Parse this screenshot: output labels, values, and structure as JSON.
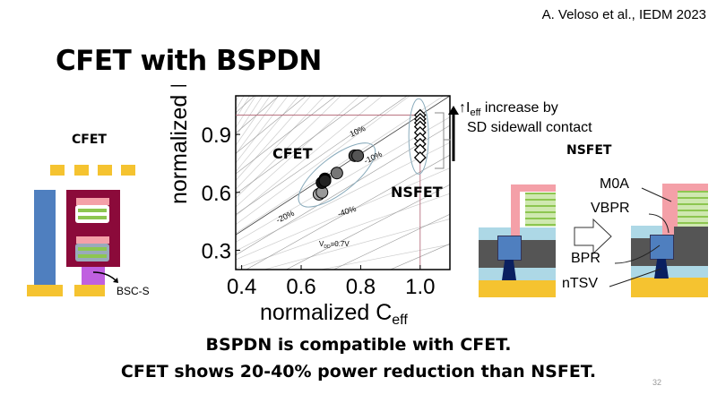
{
  "citation": "A. Veloso et al., IEDM 2023",
  "title": "CFET with BSPDN",
  "conclusions": [
    "BSPDN is compatible with CFET.",
    "CFET shows 20-40% power reduction than NSFET."
  ],
  "page_number": "32",
  "left_diagram": {
    "title": "CFET",
    "label": "BSC-S"
  },
  "right_diagram": {
    "title": "NSFET",
    "labels": [
      "M0A",
      "VBPR",
      "BPR",
      "nTSV"
    ]
  },
  "annotation": {
    "line1_prefix": "↑I",
    "line1_sub": "eff",
    "line1_suffix": " increase by",
    "line2": "SD sidewall  contact"
  },
  "colors": {
    "blue": "#4f7fbf",
    "maroon": "#8b0a3a",
    "gold": "#f5c330",
    "pink": "#f4a0a8",
    "green": "#8dc650",
    "purple": "#c060e0",
    "navy": "#0a2060",
    "lightblue": "#add8e6",
    "darkgray": "#555555"
  },
  "chart_data": {
    "type": "scatter",
    "xlabel": "normalized C",
    "xlabel_sub": "eff",
    "ylabel": "normalized I",
    "ylabel_sub": "eff",
    "xlim": [
      0.38,
      1.1
    ],
    "ylim": [
      0.2,
      1.1
    ],
    "xticks": [
      "0.4",
      "0.6",
      "0.8",
      "1.0"
    ],
    "yticks": [
      "0.3",
      "0.6",
      "0.9"
    ],
    "grid": false,
    "annotations": [
      "10%",
      "-10%",
      "-20%",
      "-40%",
      "V",
      "DD",
      "=0.7V"
    ],
    "series": [
      {
        "name": "CFET",
        "marker": "circle",
        "x": [
          0.66,
          0.67,
          0.67,
          0.68,
          0.68,
          0.72,
          0.78,
          0.79
        ],
        "y": [
          0.59,
          0.6,
          0.65,
          0.67,
          0.66,
          0.7,
          0.79,
          0.79
        ]
      },
      {
        "name": "NSFET",
        "marker": "diamond",
        "x": [
          1.0,
          1.0,
          1.0,
          1.0,
          1.0,
          1.0,
          1.0,
          1.0,
          1.0
        ],
        "y": [
          1.0,
          0.98,
          0.96,
          0.94,
          0.91,
          0.88,
          0.85,
          0.82,
          0.78
        ]
      }
    ]
  }
}
